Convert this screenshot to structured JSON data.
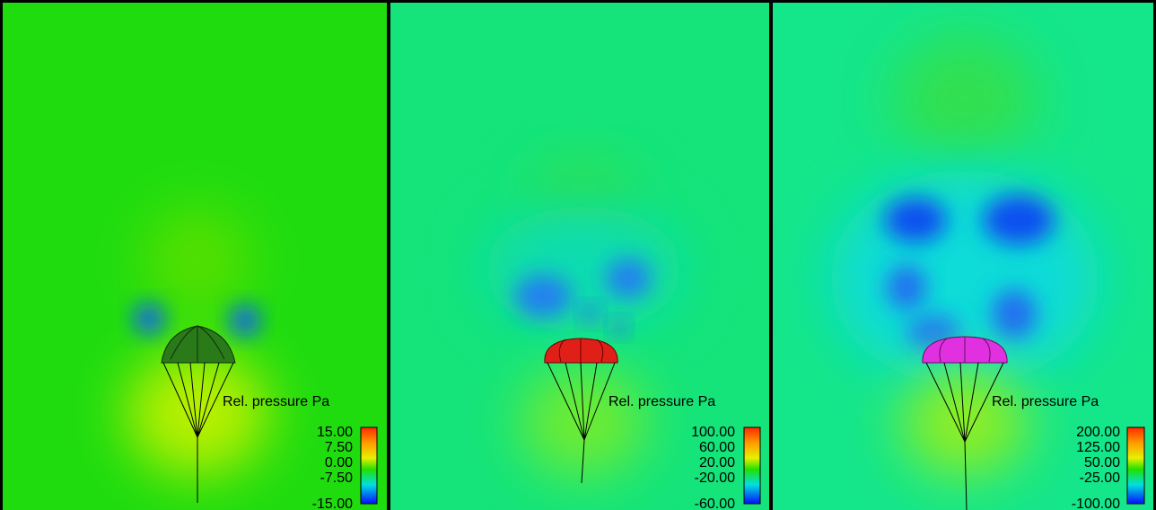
{
  "panels": [
    {
      "legend": {
        "title": "Rel. pressure Pa",
        "ticks": [
          "15.00",
          "7.50",
          "0.00",
          "-7.50",
          "-15.00"
        ]
      }
    },
    {
      "legend": {
        "title": "Rel. pressure Pa",
        "ticks": [
          "100.00",
          "60.00",
          "20.00",
          "-20.00",
          "-60.00"
        ]
      }
    },
    {
      "legend": {
        "title": "Rel. pressure Pa",
        "ticks": [
          "200.00",
          "125.00",
          "50.00",
          "-25.00",
          "-100.00"
        ]
      }
    }
  ]
}
